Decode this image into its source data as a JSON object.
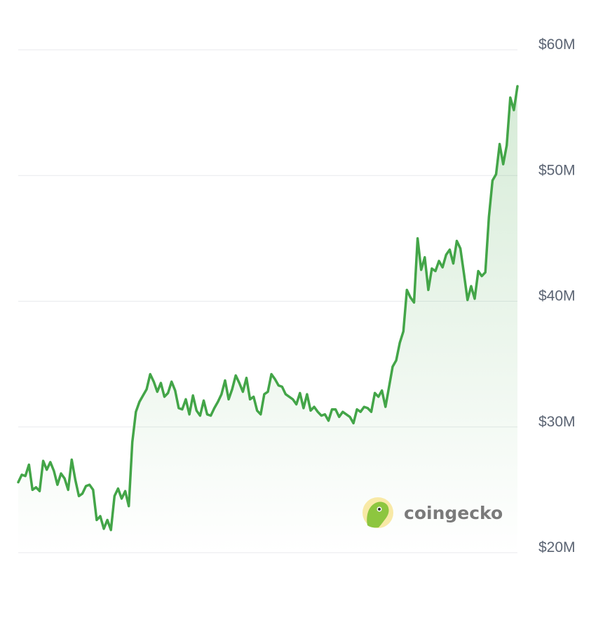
{
  "brand": {
    "name": "coingecko",
    "logo_icon": "gecko-logo-icon"
  },
  "colors": {
    "line": "#43a548",
    "area_top": "#43a548",
    "grid": "#e8eaed",
    "tick_text": "#5b6473",
    "logo_bg": "#f8e9a6",
    "logo_gecko": "#8dc63f"
  },
  "chart_data": {
    "type": "area",
    "title": "",
    "xlabel": "",
    "ylabel": "",
    "y_unit": "USD millions",
    "ylim": [
      20,
      60
    ],
    "y_ticks": [
      {
        "value": 60,
        "label": "$60M"
      },
      {
        "value": 50,
        "label": "$50M"
      },
      {
        "value": 40,
        "label": "$40M"
      },
      {
        "value": 30,
        "label": "$30M"
      },
      {
        "value": 20,
        "label": "$20M"
      }
    ],
    "grid": true,
    "x_axis_labels_visible": false,
    "series": [
      {
        "values": [
          25.6,
          26.2,
          26.1,
          27.0,
          25.0,
          25.2,
          24.9,
          27.3,
          26.6,
          27.2,
          26.5,
          25.4,
          26.3,
          25.9,
          25.0,
          27.4,
          25.8,
          24.5,
          24.7,
          25.3,
          25.4,
          25.0,
          22.6,
          22.9,
          21.9,
          22.6,
          21.8,
          24.5,
          25.1,
          24.3,
          24.9,
          23.7,
          28.8,
          31.2,
          32.0,
          32.5,
          33.0,
          34.2,
          33.6,
          32.8,
          33.5,
          32.4,
          32.7,
          33.6,
          32.9,
          31.5,
          31.4,
          32.2,
          31.0,
          32.5,
          31.3,
          30.9,
          32.1,
          31.0,
          30.9,
          31.5,
          32.0,
          32.6,
          33.7,
          32.2,
          33.0,
          34.1,
          33.5,
          32.8,
          33.9,
          32.2,
          32.4,
          31.3,
          31.0,
          32.6,
          32.8,
          34.2,
          33.8,
          33.3,
          33.2,
          32.6,
          32.4,
          32.2,
          31.8,
          32.7,
          31.5,
          32.6,
          31.3,
          31.6,
          31.2,
          30.9,
          31.0,
          30.5,
          31.4,
          31.4,
          30.8,
          31.2,
          31.0,
          30.8,
          30.3,
          31.4,
          31.2,
          31.6,
          31.5,
          31.2,
          32.7,
          32.4,
          32.9,
          31.6,
          33.2,
          34.8,
          35.3,
          36.7,
          37.6,
          40.9,
          40.3,
          39.9,
          45.0,
          42.5,
          43.5,
          40.9,
          42.6,
          42.4,
          43.2,
          42.7,
          43.7,
          44.1,
          43.0,
          44.8,
          44.2,
          42.2,
          40.1,
          41.2,
          40.2,
          42.4,
          42.0,
          42.3,
          46.7,
          49.6,
          50.1,
          52.5,
          50.9,
          52.4,
          56.2,
          55.2,
          57.1
        ]
      }
    ]
  }
}
